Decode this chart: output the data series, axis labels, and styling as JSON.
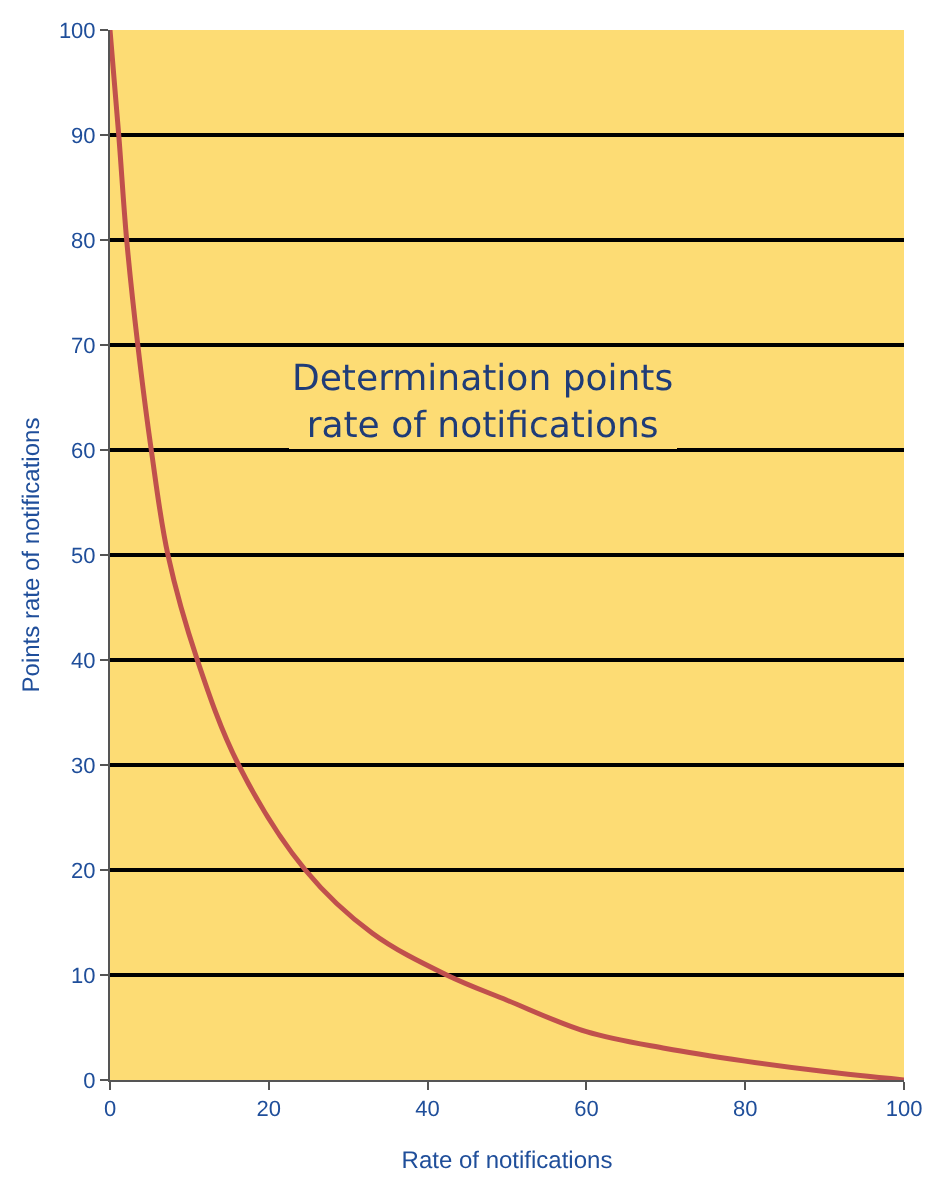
{
  "chart_data": {
    "type": "line",
    "title": "Determination points\nrate of notifications",
    "xlabel": "Rate of notifications",
    "ylabel": "Points rate of notifications",
    "x": [
      0,
      1.1,
      2.1,
      3.5,
      5.2,
      7.3,
      11,
      16.2,
      24.6,
      33,
      42.4,
      50,
      60,
      70,
      80,
      90,
      100
    ],
    "series": [
      {
        "color": "#c0504d",
        "values": [
          100,
          90,
          80,
          70,
          60,
          50,
          40,
          30,
          20,
          14,
          10,
          7.6,
          4.6,
          3,
          1.8,
          0.8,
          0
        ]
      }
    ],
    "xlim": [
      0,
      100
    ],
    "xticks": [
      0,
      20,
      40,
      60,
      80,
      100
    ],
    "ylim": [
      0,
      100
    ],
    "yticks": [
      0,
      10,
      20,
      30,
      40,
      50,
      60,
      70,
      80,
      90,
      100
    ],
    "grid": "y",
    "marker": "none",
    "line_style": "solid"
  }
}
